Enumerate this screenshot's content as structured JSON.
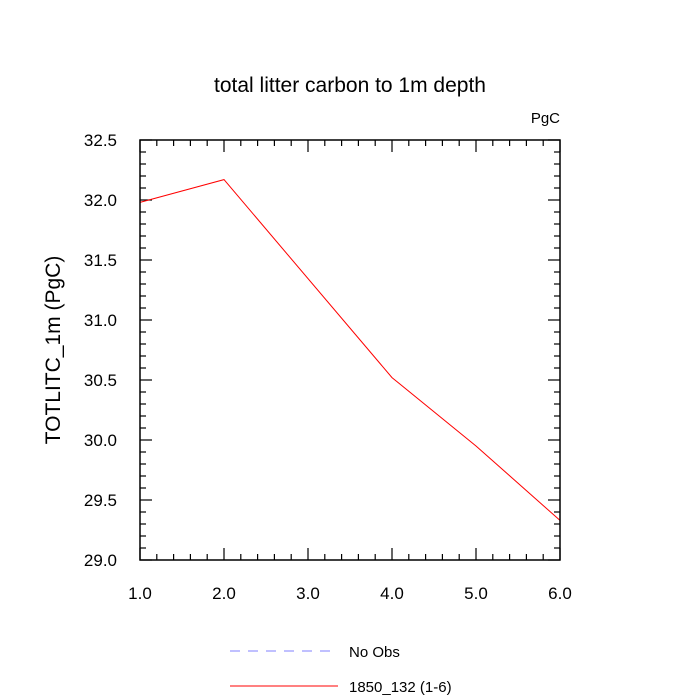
{
  "chart_data": {
    "type": "line",
    "title": "total litter carbon to 1m depth",
    "units_label": "PgC",
    "ylabel": "TOTLITC_1m  (PgC)",
    "xlabel": "",
    "xlim": [
      1.0,
      6.0
    ],
    "ylim": [
      29.0,
      32.5
    ],
    "x_ticks": [
      "1.0",
      "2.0",
      "3.0",
      "4.0",
      "5.0",
      "6.0"
    ],
    "y_ticks": [
      "29.0",
      "29.5",
      "30.0",
      "30.5",
      "31.0",
      "31.5",
      "32.0",
      "32.5"
    ],
    "grid": false,
    "legend_position": "bottom",
    "series": [
      {
        "name": "No Obs",
        "color": "#8080ff",
        "dash": "dashed",
        "x": [],
        "y": []
      },
      {
        "name": "1850_132 (1-6)",
        "color": "#ff0000",
        "dash": "solid",
        "x": [
          1.0,
          2.0,
          4.0,
          5.0,
          6.0
        ],
        "y": [
          31.98,
          32.17,
          30.52,
          29.95,
          29.33
        ]
      }
    ]
  }
}
